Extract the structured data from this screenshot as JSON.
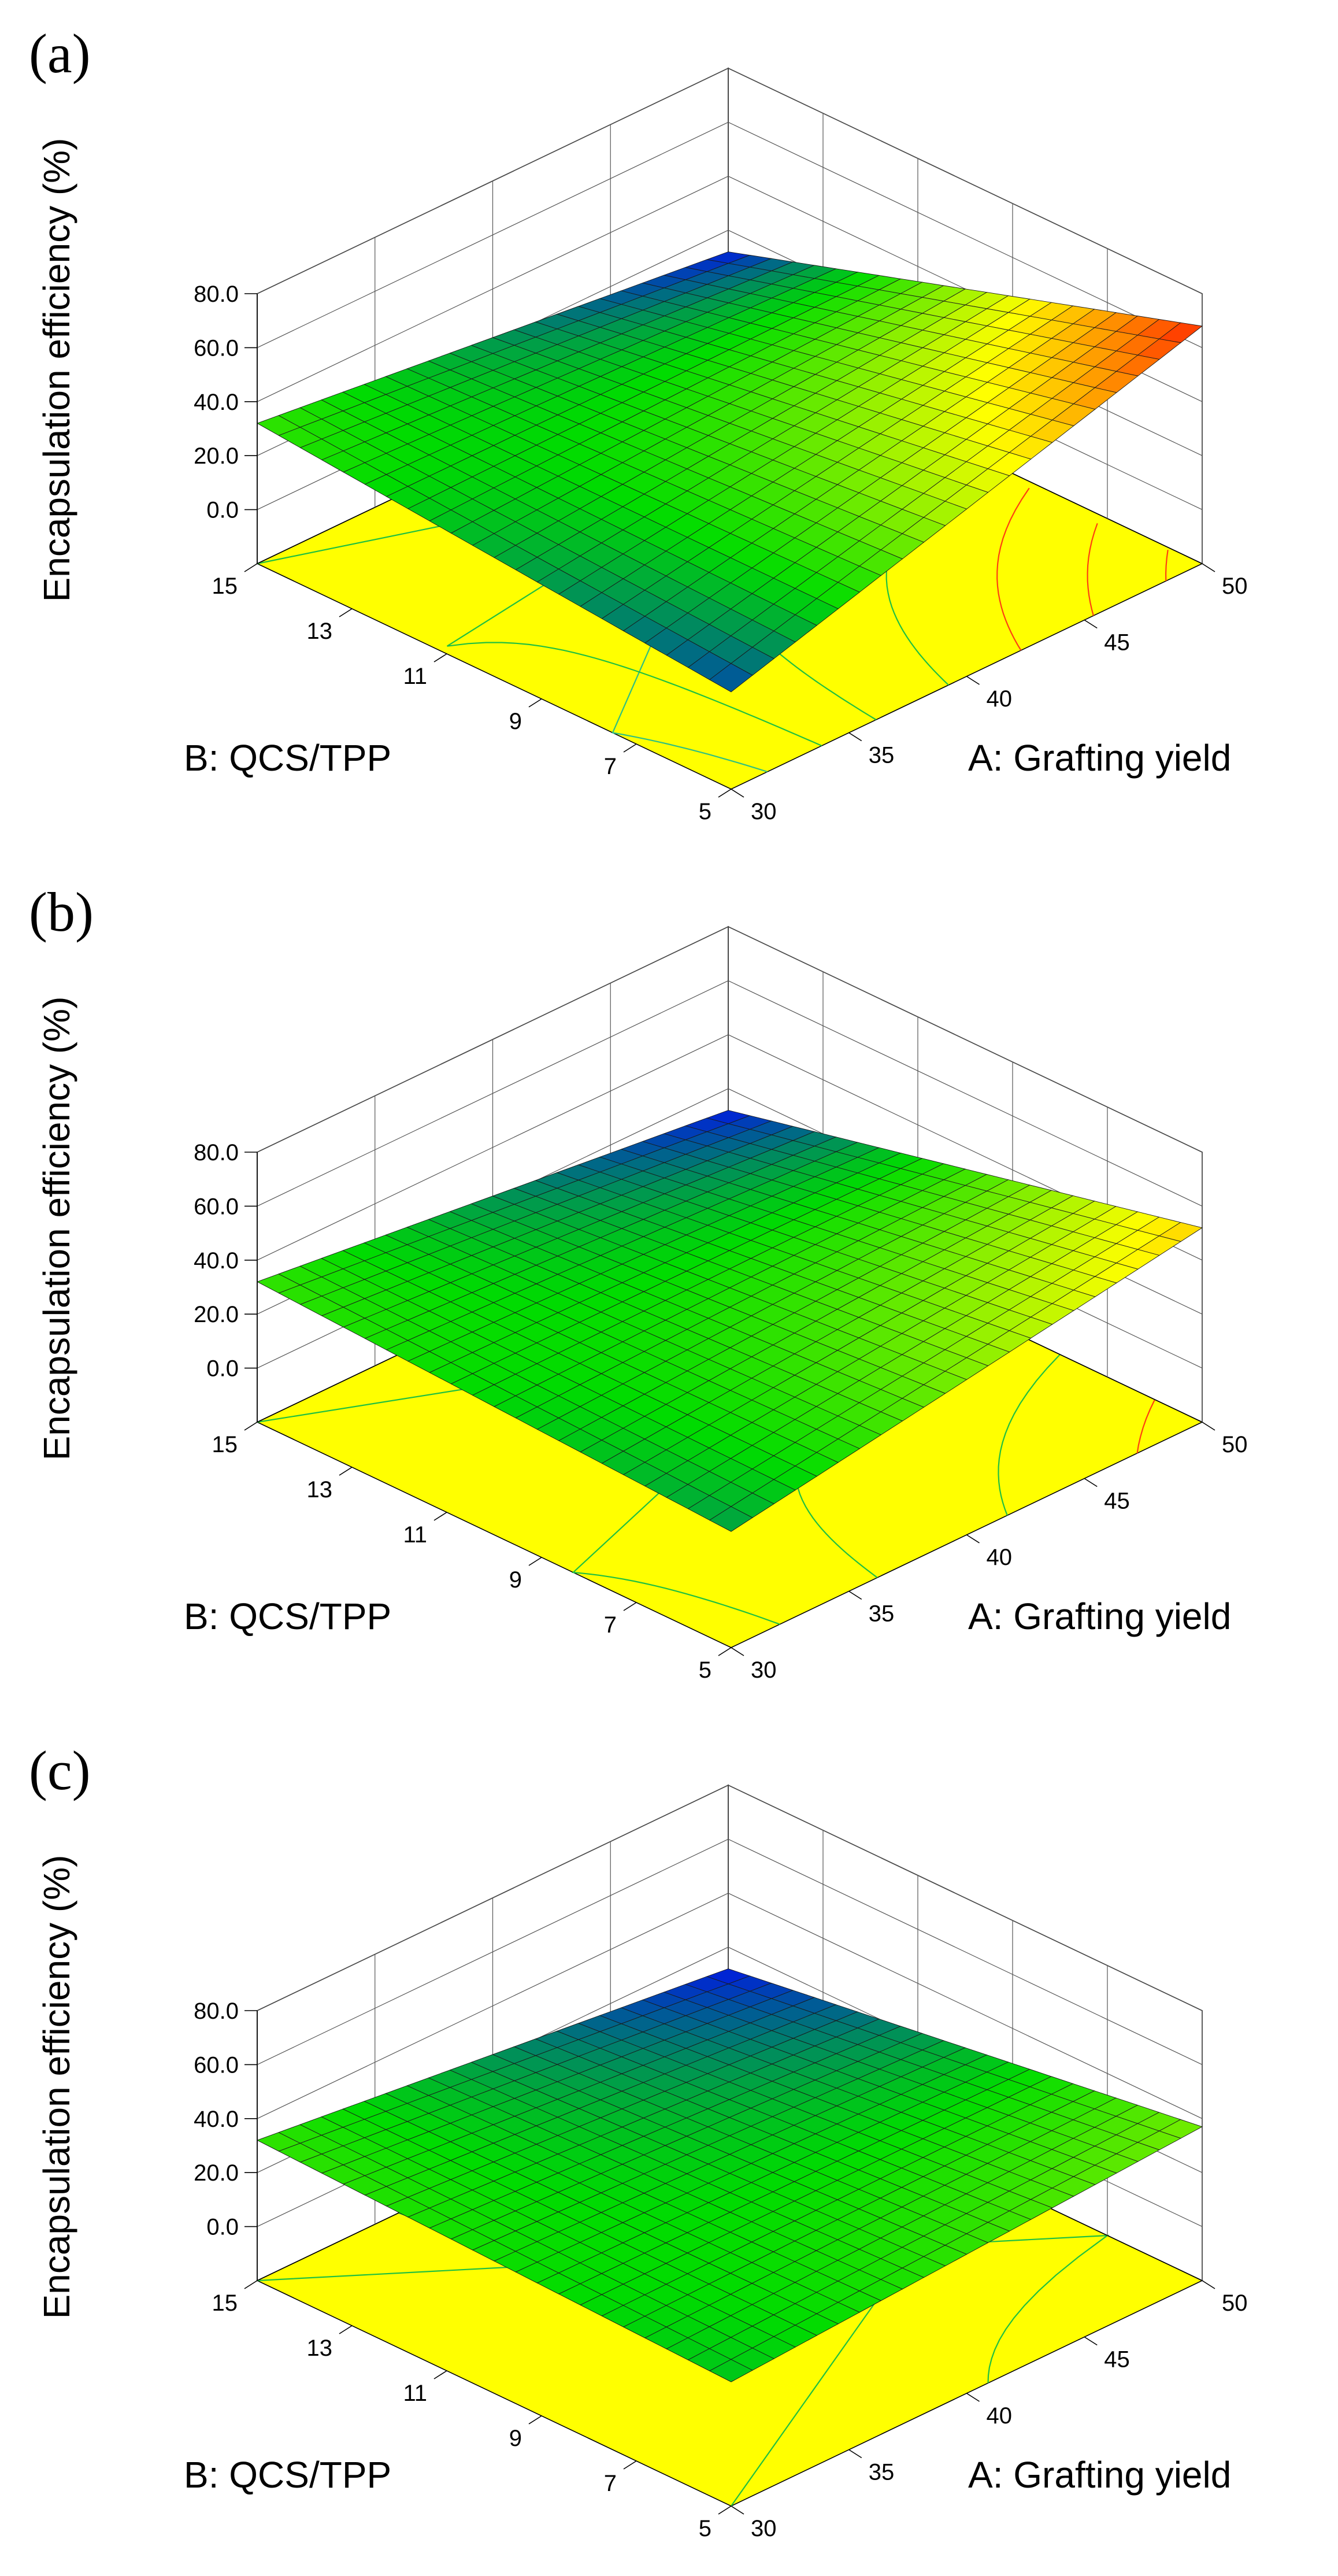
{
  "chart_data": [
    {
      "type": "surface3d",
      "panel_label": "(a)",
      "zlabel": "Encapsulation efficiency (%)",
      "xlabel": "A: Grafting yield",
      "ylabel": "B: QCS/TPP",
      "x_ticks": [
        "30",
        "35",
        "40",
        "45",
        "50"
      ],
      "y_ticks": [
        "5",
        "7",
        "9",
        "11",
        "13",
        "15"
      ],
      "z_ticks": [
        "0.0",
        "20.0",
        "40.0",
        "60.0",
        "80.0"
      ],
      "xlim": [
        30,
        50
      ],
      "ylim": [
        5,
        15
      ],
      "zlim": [
        -20,
        80
      ],
      "corner_values": {
        "A30_B15": 32,
        "A30_B5": 16,
        "A50_B15": 12,
        "A50_B5": 68
      },
      "colormap": "blue-green-yellow-red",
      "contour_floor_color": "#ffff00"
    },
    {
      "type": "surface3d",
      "panel_label": "(b)",
      "zlabel": "Encapsulation efficiency (%)",
      "xlabel": "A: Grafting yield",
      "ylabel": "B: QCS/TPP",
      "x_ticks": [
        "30",
        "35",
        "40",
        "45",
        "50"
      ],
      "y_ticks": [
        "5",
        "7",
        "9",
        "11",
        "13",
        "15"
      ],
      "z_ticks": [
        "0.0",
        "20.0",
        "40.0",
        "60.0",
        "80.0"
      ],
      "xlim": [
        30,
        50
      ],
      "ylim": [
        5,
        15
      ],
      "zlim": [
        -20,
        80
      ],
      "corner_values": {
        "A30_B15": 32,
        "A30_B5": 23,
        "A50_B15": 12,
        "A50_B5": 52
      },
      "colormap": "blue-green-yellow-red",
      "contour_floor_color": "#ffff00"
    },
    {
      "type": "surface3d",
      "panel_label": "(c)",
      "zlabel": "Encapsulation efficiency (%)",
      "xlabel": "A: Grafting yield",
      "ylabel": "B: QCS/TPP",
      "x_ticks": [
        "30",
        "35",
        "40",
        "45",
        "50"
      ],
      "y_ticks": [
        "5",
        "7",
        "9",
        "11",
        "13",
        "15"
      ],
      "z_ticks": [
        "0.0",
        "20.0",
        "40.0",
        "60.0",
        "80.0"
      ],
      "xlim": [
        30,
        50
      ],
      "ylim": [
        5,
        15
      ],
      "zlim": [
        -20,
        80
      ],
      "corner_values": {
        "A30_B15": 32,
        "A30_B5": 26,
        "A50_B15": 12,
        "A50_B5": 37
      },
      "colormap": "blue-green-yellow-red",
      "contour_floor_color": "#ffff00"
    }
  ]
}
